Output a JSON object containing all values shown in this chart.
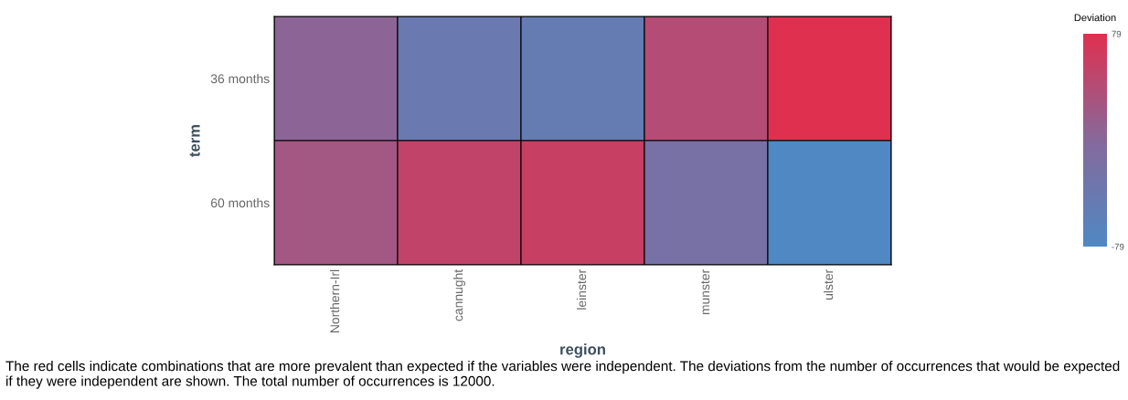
{
  "chart_data": {
    "type": "heatmap",
    "xlabel": "region",
    "ylabel": "term",
    "clabel": "Deviation",
    "categories": [
      "Northern-Irl",
      "cannught",
      "leinster",
      "munster",
      "ulster"
    ],
    "y_categories": [
      "36 months",
      "60 months"
    ],
    "cells": [
      [
        5,
        -40,
        -48,
        40,
        79
      ],
      [
        25,
        52,
        57,
        -20,
        -79
      ]
    ],
    "clim": [
      -79,
      79
    ],
    "cticks": [
      -79,
      79
    ],
    "annotations": [
      "The red cells indicate combinations that are more prevalent than expected if the variables were independent. The deviations from the number of occurrences that would be expected if they were independent are shown. The total number of occurrences is 12000."
    ]
  }
}
